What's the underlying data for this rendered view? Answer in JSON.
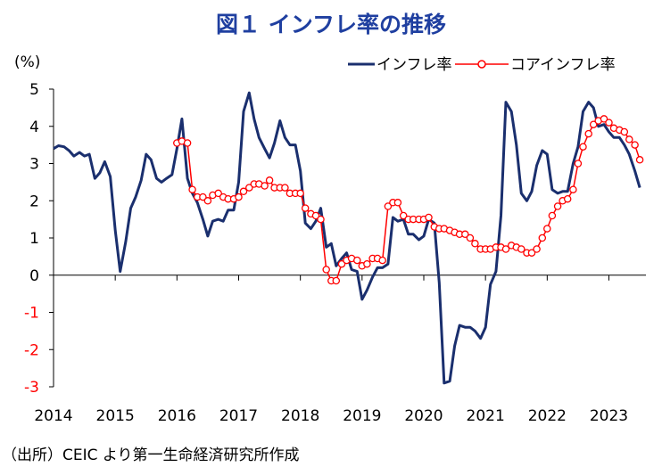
{
  "chart_data": {
    "type": "line",
    "title": "図１ インフレ率の推移",
    "ylabel": "(%)",
    "source": "（出所）CEIC より第一生命経済研究所作成",
    "ylim": [
      -3,
      5
    ],
    "yticks": [
      5,
      4,
      3,
      2,
      1,
      0,
      -1,
      -2,
      -3
    ],
    "xlim": [
      2014.0,
      2023.6
    ],
    "xticks": [
      "2014",
      "2015",
      "2016",
      "2017",
      "2018",
      "2019",
      "2020",
      "2021",
      "2022",
      "2023"
    ],
    "legend_position": "top-right",
    "grid": false,
    "colors": {
      "headline": "#1a2f6e",
      "core": "#ff0000",
      "negative_tick": "#ff0000"
    },
    "series": [
      {
        "name": "インフレ率",
        "style": "line",
        "points": [
          [
            2014.0,
            3.4
          ],
          [
            2014.08,
            3.48
          ],
          [
            2014.17,
            3.45
          ],
          [
            2014.25,
            3.35
          ],
          [
            2014.33,
            3.2
          ],
          [
            2014.42,
            3.3
          ],
          [
            2014.5,
            3.2
          ],
          [
            2014.58,
            3.25
          ],
          [
            2014.67,
            2.6
          ],
          [
            2014.75,
            2.75
          ],
          [
            2014.83,
            3.05
          ],
          [
            2014.92,
            2.65
          ],
          [
            2015.0,
            1.2
          ],
          [
            2015.08,
            0.1
          ],
          [
            2015.17,
            0.9
          ],
          [
            2015.25,
            1.8
          ],
          [
            2015.33,
            2.1
          ],
          [
            2015.42,
            2.55
          ],
          [
            2015.5,
            3.25
          ],
          [
            2015.58,
            3.1
          ],
          [
            2015.67,
            2.6
          ],
          [
            2015.75,
            2.5
          ],
          [
            2015.83,
            2.6
          ],
          [
            2015.92,
            2.7
          ],
          [
            2016.0,
            3.4
          ],
          [
            2016.08,
            4.2
          ],
          [
            2016.17,
            2.6
          ],
          [
            2016.25,
            2.2
          ],
          [
            2016.33,
            1.95
          ],
          [
            2016.42,
            1.5
          ],
          [
            2016.5,
            1.05
          ],
          [
            2016.58,
            1.45
          ],
          [
            2016.67,
            1.5
          ],
          [
            2016.75,
            1.45
          ],
          [
            2016.83,
            1.75
          ],
          [
            2016.92,
            1.75
          ],
          [
            2017.0,
            2.5
          ],
          [
            2017.08,
            4.4
          ],
          [
            2017.17,
            4.9
          ],
          [
            2017.25,
            4.2
          ],
          [
            2017.33,
            3.7
          ],
          [
            2017.42,
            3.4
          ],
          [
            2017.5,
            3.15
          ],
          [
            2017.58,
            3.55
          ],
          [
            2017.67,
            4.15
          ],
          [
            2017.75,
            3.7
          ],
          [
            2017.83,
            3.5
          ],
          [
            2017.92,
            3.5
          ],
          [
            2018.0,
            2.8
          ],
          [
            2018.08,
            1.4
          ],
          [
            2018.17,
            1.25
          ],
          [
            2018.25,
            1.45
          ],
          [
            2018.33,
            1.8
          ],
          [
            2018.42,
            0.75
          ],
          [
            2018.5,
            0.85
          ],
          [
            2018.58,
            0.25
          ],
          [
            2018.67,
            0.45
          ],
          [
            2018.75,
            0.6
          ],
          [
            2018.83,
            0.15
          ],
          [
            2018.92,
            0.1
          ],
          [
            2019.0,
            -0.65
          ],
          [
            2019.08,
            -0.4
          ],
          [
            2019.17,
            -0.05
          ],
          [
            2019.25,
            0.2
          ],
          [
            2019.33,
            0.2
          ],
          [
            2019.42,
            0.3
          ],
          [
            2019.5,
            1.55
          ],
          [
            2019.58,
            1.45
          ],
          [
            2019.67,
            1.5
          ],
          [
            2019.75,
            1.1
          ],
          [
            2019.83,
            1.1
          ],
          [
            2019.92,
            0.95
          ],
          [
            2020.0,
            1.05
          ],
          [
            2020.08,
            1.5
          ],
          [
            2020.17,
            1.4
          ],
          [
            2020.25,
            -0.2
          ],
          [
            2020.33,
            -2.9
          ],
          [
            2020.42,
            -2.85
          ],
          [
            2020.5,
            -1.9
          ],
          [
            2020.58,
            -1.35
          ],
          [
            2020.67,
            -1.4
          ],
          [
            2020.75,
            -1.4
          ],
          [
            2020.83,
            -1.5
          ],
          [
            2020.92,
            -1.7
          ],
          [
            2021.0,
            -1.4
          ],
          [
            2021.08,
            -0.25
          ],
          [
            2021.17,
            0.1
          ],
          [
            2021.25,
            1.6
          ],
          [
            2021.33,
            4.65
          ],
          [
            2021.42,
            4.4
          ],
          [
            2021.5,
            3.5
          ],
          [
            2021.58,
            2.2
          ],
          [
            2021.67,
            2.0
          ],
          [
            2021.75,
            2.25
          ],
          [
            2021.83,
            2.95
          ],
          [
            2021.92,
            3.35
          ],
          [
            2022.0,
            3.25
          ],
          [
            2022.08,
            2.3
          ],
          [
            2022.17,
            2.2
          ],
          [
            2022.25,
            2.25
          ],
          [
            2022.33,
            2.25
          ],
          [
            2022.42,
            3.0
          ],
          [
            2022.5,
            3.45
          ],
          [
            2022.58,
            4.4
          ],
          [
            2022.67,
            4.65
          ],
          [
            2022.75,
            4.5
          ],
          [
            2022.83,
            4.0
          ],
          [
            2022.92,
            4.05
          ],
          [
            2023.0,
            3.85
          ],
          [
            2023.08,
            3.7
          ],
          [
            2023.17,
            3.7
          ],
          [
            2023.25,
            3.5
          ],
          [
            2023.33,
            3.25
          ],
          [
            2023.42,
            2.8
          ],
          [
            2023.5,
            2.35
          ]
        ]
      },
      {
        "name": "コアインフレ率",
        "style": "line-with-markers",
        "points": [
          [
            2016.0,
            3.55
          ],
          [
            2016.08,
            3.6
          ],
          [
            2016.17,
            3.55
          ],
          [
            2016.25,
            2.3
          ],
          [
            2016.33,
            2.1
          ],
          [
            2016.42,
            2.1
          ],
          [
            2016.5,
            2.0
          ],
          [
            2016.58,
            2.15
          ],
          [
            2016.67,
            2.2
          ],
          [
            2016.75,
            2.1
          ],
          [
            2016.83,
            2.05
          ],
          [
            2016.92,
            2.05
          ],
          [
            2017.0,
            2.1
          ],
          [
            2017.08,
            2.25
          ],
          [
            2017.17,
            2.35
          ],
          [
            2017.25,
            2.45
          ],
          [
            2017.33,
            2.45
          ],
          [
            2017.42,
            2.4
          ],
          [
            2017.5,
            2.55
          ],
          [
            2017.58,
            2.35
          ],
          [
            2017.67,
            2.35
          ],
          [
            2017.75,
            2.35
          ],
          [
            2017.83,
            2.2
          ],
          [
            2017.92,
            2.2
          ],
          [
            2018.0,
            2.2
          ],
          [
            2018.08,
            1.8
          ],
          [
            2018.17,
            1.65
          ],
          [
            2018.25,
            1.6
          ],
          [
            2018.33,
            1.5
          ],
          [
            2018.42,
            0.15
          ],
          [
            2018.5,
            -0.15
          ],
          [
            2018.58,
            -0.15
          ],
          [
            2018.67,
            0.3
          ],
          [
            2018.75,
            0.4
          ],
          [
            2018.83,
            0.45
          ],
          [
            2018.92,
            0.4
          ],
          [
            2019.0,
            0.25
          ],
          [
            2019.08,
            0.3
          ],
          [
            2019.17,
            0.45
          ],
          [
            2019.25,
            0.45
          ],
          [
            2019.33,
            0.4
          ],
          [
            2019.42,
            1.85
          ],
          [
            2019.5,
            1.95
          ],
          [
            2019.58,
            1.95
          ],
          [
            2019.67,
            1.6
          ],
          [
            2019.75,
            1.5
          ],
          [
            2019.83,
            1.5
          ],
          [
            2019.92,
            1.5
          ],
          [
            2020.0,
            1.5
          ],
          [
            2020.08,
            1.55
          ],
          [
            2020.17,
            1.3
          ],
          [
            2020.25,
            1.25
          ],
          [
            2020.33,
            1.25
          ],
          [
            2020.42,
            1.2
          ],
          [
            2020.5,
            1.15
          ],
          [
            2020.58,
            1.1
          ],
          [
            2020.67,
            1.1
          ],
          [
            2020.75,
            1.0
          ],
          [
            2020.83,
            0.85
          ],
          [
            2020.92,
            0.7
          ],
          [
            2021.0,
            0.7
          ],
          [
            2021.08,
            0.7
          ],
          [
            2021.17,
            0.75
          ],
          [
            2021.25,
            0.75
          ],
          [
            2021.33,
            0.7
          ],
          [
            2021.42,
            0.8
          ],
          [
            2021.5,
            0.75
          ],
          [
            2021.58,
            0.7
          ],
          [
            2021.67,
            0.6
          ],
          [
            2021.75,
            0.6
          ],
          [
            2021.83,
            0.7
          ],
          [
            2021.92,
            1.0
          ],
          [
            2022.0,
            1.25
          ],
          [
            2022.08,
            1.6
          ],
          [
            2022.17,
            1.85
          ],
          [
            2022.25,
            2.0
          ],
          [
            2022.33,
            2.05
          ],
          [
            2022.42,
            2.3
          ],
          [
            2022.5,
            3.0
          ],
          [
            2022.58,
            3.45
          ],
          [
            2022.67,
            3.8
          ],
          [
            2022.75,
            4.05
          ],
          [
            2022.83,
            4.15
          ],
          [
            2022.92,
            4.2
          ],
          [
            2023.0,
            4.1
          ],
          [
            2023.08,
            3.95
          ],
          [
            2023.17,
            3.9
          ],
          [
            2023.25,
            3.85
          ],
          [
            2023.33,
            3.65
          ],
          [
            2023.42,
            3.5
          ],
          [
            2023.5,
            3.1
          ]
        ]
      }
    ]
  }
}
